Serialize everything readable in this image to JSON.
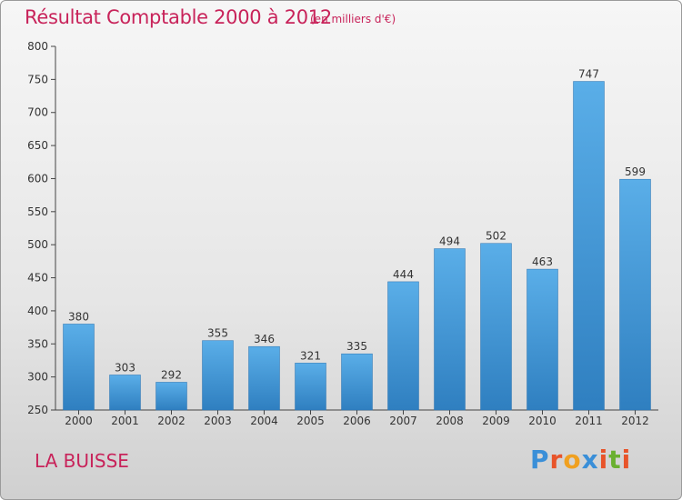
{
  "header": {
    "title": "Résultat Comptable 2000 à 2012",
    "subtitle": "(en milliers d'€)"
  },
  "footer": {
    "commune": "LA BUISSE",
    "logo": "Proxiti"
  },
  "colors": {
    "title": "#c8235a",
    "bar_top": "#5aaee8",
    "bar_bottom": "#2f7fc0",
    "logo_letters": [
      "#3a8fd8",
      "#e8542a",
      "#f0a020",
      "#3a8fd8",
      "#e8542a",
      "#6ab030",
      "#e8542a"
    ]
  },
  "chart_data": {
    "type": "bar",
    "categories": [
      "2000",
      "2001",
      "2002",
      "2003",
      "2004",
      "2005",
      "2006",
      "2007",
      "2008",
      "2009",
      "2010",
      "2011",
      "2012"
    ],
    "values": [
      380,
      303,
      292,
      355,
      346,
      321,
      335,
      444,
      494,
      502,
      463,
      747,
      599
    ],
    "ylim": [
      250,
      800
    ],
    "yticks": [
      250,
      300,
      350,
      400,
      450,
      500,
      550,
      600,
      650,
      700,
      750,
      800
    ],
    "grid": false
  }
}
